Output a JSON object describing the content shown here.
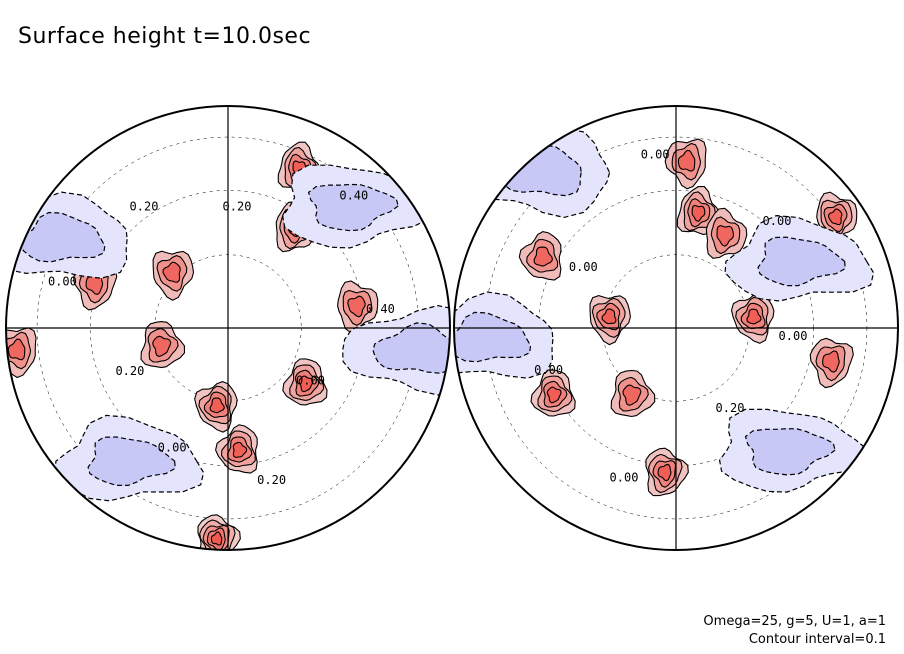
{
  "title": "Surface height t=10.0sec",
  "params_text": "Omega=25, g=5, U=1, a=1",
  "interval_text": "Contour interval=0.1",
  "colors": {
    "positive": "#e8302a",
    "negative": "#5a5ae6",
    "line": "#000000"
  },
  "hemispheres": [
    {
      "name": "left",
      "labels": [
        "0.00",
        "0.20",
        "0.00",
        "0.20",
        "0.00",
        "0.20",
        "0.20",
        "0.40",
        "0.40"
      ],
      "features": [
        {
          "type": "high",
          "lat": 0.72,
          "lon": 0.32,
          "amp": 3
        },
        {
          "type": "high",
          "lat": 0.45,
          "lon": 0.3,
          "amp": 3
        },
        {
          "type": "high",
          "lat": 0.1,
          "lon": 0.58,
          "amp": 2
        },
        {
          "type": "high",
          "lat": 0.25,
          "lon": -0.25,
          "amp": 2
        },
        {
          "type": "high",
          "lat": -0.35,
          "lon": -0.05,
          "amp": 3
        },
        {
          "type": "high",
          "lat": -0.55,
          "lon": 0.05,
          "amp": 3
        },
        {
          "type": "high",
          "lat": -0.25,
          "lon": 0.35,
          "amp": 3
        },
        {
          "type": "high",
          "lat": -0.08,
          "lon": -0.3,
          "amp": 2
        },
        {
          "type": "high",
          "lat": -0.95,
          "lon": -0.05,
          "amp": 4
        },
        {
          "type": "high",
          "lat": 0.2,
          "lon": -0.6,
          "amp": 2
        },
        {
          "type": "high",
          "lat": -0.1,
          "lon": -0.95,
          "amp": 2
        },
        {
          "type": "low",
          "lat": -0.1,
          "lon": 0.85,
          "amp": 1
        },
        {
          "type": "low",
          "lat": 0.4,
          "lon": -0.75,
          "amp": 1
        },
        {
          "type": "low",
          "lat": -0.6,
          "lon": -0.45,
          "amp": 1
        },
        {
          "type": "low",
          "lat": 0.55,
          "lon": 0.55,
          "amp": 1
        }
      ]
    },
    {
      "name": "right",
      "labels": [
        "0.20",
        "0.00",
        "0.00",
        "0.00",
        "0.00",
        "0.00",
        "0.00"
      ],
      "features": [
        {
          "type": "high",
          "lat": 0.52,
          "lon": 0.1,
          "amp": 3
        },
        {
          "type": "high",
          "lat": 0.42,
          "lon": 0.22,
          "amp": 2
        },
        {
          "type": "high",
          "lat": 0.5,
          "lon": 0.72,
          "amp": 3
        },
        {
          "type": "high",
          "lat": 0.05,
          "lon": -0.3,
          "amp": 3
        },
        {
          "type": "high",
          "lat": 0.05,
          "lon": 0.35,
          "amp": 3
        },
        {
          "type": "high",
          "lat": 0.32,
          "lon": -0.6,
          "amp": 2
        },
        {
          "type": "high",
          "lat": -0.3,
          "lon": -0.55,
          "amp": 3
        },
        {
          "type": "high",
          "lat": -0.3,
          "lon": -0.2,
          "amp": 2
        },
        {
          "type": "high",
          "lat": -0.65,
          "lon": -0.05,
          "amp": 3
        },
        {
          "type": "high",
          "lat": -0.15,
          "lon": 0.7,
          "amp": 2
        },
        {
          "type": "high",
          "lat": 0.75,
          "lon": 0.05,
          "amp": 2
        },
        {
          "type": "low",
          "lat": 0.7,
          "lon": -0.6,
          "amp": 1
        },
        {
          "type": "low",
          "lat": -0.05,
          "lon": -0.85,
          "amp": 1
        },
        {
          "type": "low",
          "lat": 0.3,
          "lon": 0.55,
          "amp": 1
        },
        {
          "type": "low",
          "lat": -0.55,
          "lon": 0.5,
          "amp": 1
        }
      ]
    }
  ]
}
